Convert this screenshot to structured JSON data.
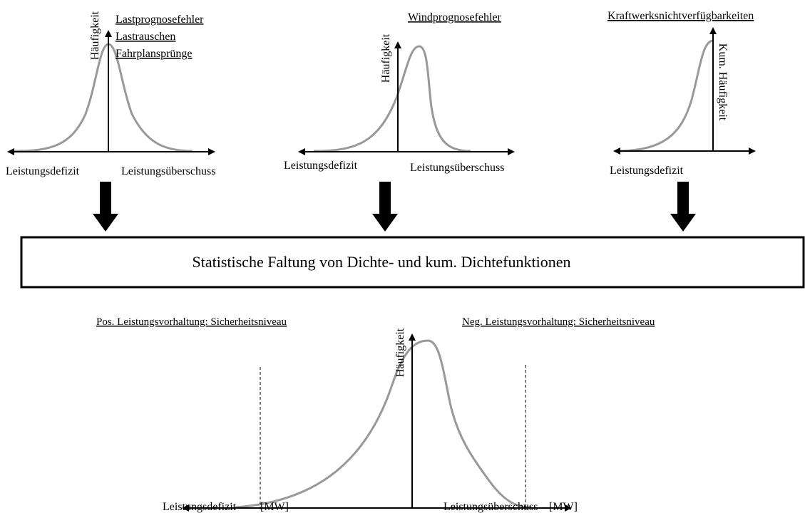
{
  "panels": [
    {
      "titles": [
        "Lastprognosefehler",
        "Lastrauschen",
        "Fahrplansprünge"
      ],
      "y_label": "Häufigkeit",
      "x_left": "Leistungsdefizit",
      "x_right": "Leistungsüberschuss"
    },
    {
      "titles": [
        "Windprognosefehler"
      ],
      "y_label": "Häufigkeit",
      "x_left": "Leistungsdefizit",
      "x_right": "Leistungsüberschuss"
    },
    {
      "titles": [
        "Kraftwerksnichtverfügbarkeiten"
      ],
      "y_label": "Kum. Häufigkeit",
      "x_left": "Leistungsdefizit"
    }
  ],
  "process": {
    "label": "Statistische Faltung von Dichte- und kum. Dichtefunktionen"
  },
  "result": {
    "left_title": "Pos. Leistungsvorhaltung: Sicherheitsniveau",
    "right_title": "Neg. Leistungsvorhaltung: Sicherheitsniveau",
    "y_label": "Häufigkeit",
    "x_left": "Leistungsdefizit",
    "x_left_unit": "[MW]",
    "x_right": "Leistungsüberschuss",
    "x_right_unit": "[MW]"
  }
}
